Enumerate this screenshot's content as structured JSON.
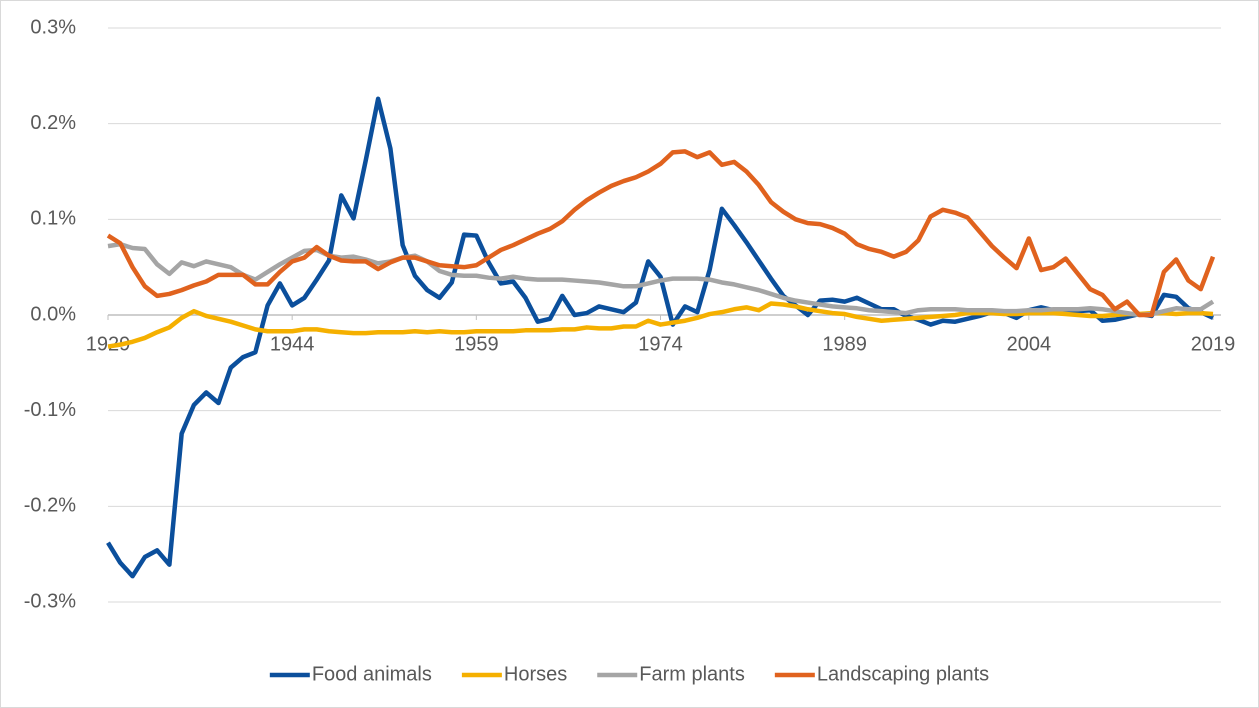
{
  "chart_data": {
    "type": "line",
    "x": [
      1929,
      1930,
      1931,
      1932,
      1933,
      1934,
      1935,
      1936,
      1937,
      1938,
      1939,
      1940,
      1941,
      1942,
      1943,
      1944,
      1945,
      1946,
      1947,
      1948,
      1949,
      1950,
      1951,
      1952,
      1953,
      1954,
      1955,
      1956,
      1957,
      1958,
      1959,
      1960,
      1961,
      1962,
      1963,
      1964,
      1965,
      1966,
      1967,
      1968,
      1969,
      1970,
      1971,
      1972,
      1973,
      1974,
      1975,
      1976,
      1977,
      1978,
      1979,
      1980,
      1981,
      1982,
      1983,
      1984,
      1985,
      1986,
      1987,
      1988,
      1989,
      1990,
      1991,
      1992,
      1993,
      1994,
      1995,
      1996,
      1997,
      1998,
      1999,
      2000,
      2001,
      2002,
      2003,
      2004,
      2005,
      2006,
      2007,
      2008,
      2009,
      2010,
      2011,
      2012,
      2013,
      2014,
      2015,
      2016,
      2017,
      2018,
      2019
    ],
    "series": [
      {
        "name": "Food animals",
        "color": "#0b4f9c",
        "values": [
          -0.238,
          -0.259,
          -0.273,
          -0.253,
          -0.246,
          -0.261,
          -0.124,
          -0.094,
          -0.081,
          -0.092,
          -0.055,
          -0.044,
          -0.039,
          0.01,
          0.033,
          0.01,
          0.018,
          0.037,
          0.057,
          0.125,
          0.101,
          0.162,
          0.226,
          0.174,
          0.073,
          0.041,
          0.026,
          0.018,
          0.034,
          0.084,
          0.083,
          0.055,
          0.033,
          0.035,
          0.018,
          -0.007,
          -0.004,
          0.02,
          0.0,
          0.002,
          0.009,
          0.006,
          0.003,
          0.013,
          0.056,
          0.04,
          -0.01,
          0.009,
          0.003,
          0.047,
          0.111,
          0.094,
          0.076,
          0.057,
          0.038,
          0.02,
          0.01,
          0.0,
          0.015,
          0.016,
          0.014,
          0.018,
          0.012,
          0.006,
          0.006,
          -0.001,
          -0.005,
          -0.01,
          -0.006,
          -0.007,
          -0.004,
          -0.001,
          0.003,
          0.002,
          -0.003,
          0.005,
          0.008,
          0.005,
          0.004,
          0.004,
          0.005,
          -0.006,
          -0.005,
          -0.002,
          0.001,
          -0.001,
          0.021,
          0.019,
          0.007,
          0.003,
          -0.003
        ]
      },
      {
        "name": "Horses",
        "color": "#f5b000",
        "values": [
          -0.033,
          -0.031,
          -0.028,
          -0.024,
          -0.018,
          -0.013,
          -0.003,
          0.004,
          -0.001,
          -0.004,
          -0.007,
          -0.011,
          -0.015,
          -0.017,
          -0.017,
          -0.017,
          -0.015,
          -0.015,
          -0.017,
          -0.018,
          -0.019,
          -0.019,
          -0.018,
          -0.018,
          -0.018,
          -0.017,
          -0.018,
          -0.017,
          -0.018,
          -0.018,
          -0.017,
          -0.017,
          -0.017,
          -0.017,
          -0.016,
          -0.016,
          -0.016,
          -0.015,
          -0.015,
          -0.013,
          -0.014,
          -0.014,
          -0.012,
          -0.012,
          -0.006,
          -0.01,
          -0.008,
          -0.006,
          -0.003,
          0.001,
          0.003,
          0.006,
          0.008,
          0.005,
          0.012,
          0.011,
          0.009,
          0.006,
          0.004,
          0.002,
          0.001,
          -0.002,
          -0.004,
          -0.006,
          -0.005,
          -0.004,
          -0.003,
          -0.002,
          -0.001,
          0.0,
          0.002,
          0.002,
          0.002,
          0.001,
          0.001,
          0.002,
          0.002,
          0.002,
          0.001,
          0.0,
          -0.001,
          -0.001,
          0.0,
          0.001,
          0.001,
          0.002,
          0.002,
          0.001,
          0.002,
          0.002,
          0.001
        ]
      },
      {
        "name": "Farm plants",
        "color": "#a5a5a5",
        "values": [
          0.072,
          0.074,
          0.07,
          0.069,
          0.053,
          0.043,
          0.055,
          0.051,
          0.056,
          0.053,
          0.05,
          0.042,
          0.037,
          0.045,
          0.053,
          0.06,
          0.067,
          0.068,
          0.062,
          0.06,
          0.061,
          0.058,
          0.054,
          0.056,
          0.06,
          0.062,
          0.056,
          0.046,
          0.042,
          0.041,
          0.041,
          0.039,
          0.038,
          0.04,
          0.038,
          0.037,
          0.037,
          0.037,
          0.036,
          0.035,
          0.034,
          0.032,
          0.03,
          0.03,
          0.033,
          0.036,
          0.038,
          0.038,
          0.038,
          0.037,
          0.034,
          0.032,
          0.029,
          0.026,
          0.022,
          0.018,
          0.015,
          0.013,
          0.011,
          0.009,
          0.008,
          0.007,
          0.005,
          0.004,
          0.003,
          0.002,
          0.005,
          0.006,
          0.006,
          0.006,
          0.005,
          0.005,
          0.005,
          0.004,
          0.004,
          0.005,
          0.005,
          0.006,
          0.006,
          0.006,
          0.007,
          0.006,
          0.004,
          0.002,
          0.0,
          0.001,
          0.004,
          0.007,
          0.006,
          0.006,
          0.014
        ]
      },
      {
        "name": "Landscaping plants",
        "color": "#e0621e",
        "values": [
          0.083,
          0.075,
          0.05,
          0.03,
          0.02,
          0.022,
          0.026,
          0.031,
          0.035,
          0.042,
          0.042,
          0.042,
          0.032,
          0.032,
          0.045,
          0.056,
          0.06,
          0.071,
          0.062,
          0.057,
          0.056,
          0.056,
          0.048,
          0.055,
          0.06,
          0.06,
          0.056,
          0.052,
          0.051,
          0.05,
          0.052,
          0.06,
          0.068,
          0.073,
          0.079,
          0.085,
          0.09,
          0.098,
          0.11,
          0.12,
          0.128,
          0.135,
          0.14,
          0.144,
          0.15,
          0.158,
          0.17,
          0.171,
          0.165,
          0.17,
          0.157,
          0.16,
          0.15,
          0.136,
          0.118,
          0.108,
          0.1,
          0.096,
          0.095,
          0.091,
          0.085,
          0.074,
          0.069,
          0.066,
          0.061,
          0.066,
          0.078,
          0.103,
          0.11,
          0.107,
          0.102,
          0.087,
          0.072,
          0.06,
          0.049,
          0.08,
          0.047,
          0.05,
          0.059,
          0.043,
          0.027,
          0.021,
          0.006,
          0.014,
          0.0,
          0.0,
          0.045,
          0.058,
          0.036,
          0.027,
          0.061
        ]
      }
    ],
    "xlim": [
      1929,
      2019
    ],
    "xticks": [
      1929,
      1944,
      1959,
      1974,
      1989,
      2004,
      2019
    ],
    "ylim": [
      -0.3,
      0.3
    ],
    "yticks": [
      {
        "value": -0.3,
        "label": "-0.3%"
      },
      {
        "value": -0.2,
        "label": "-0.2%"
      },
      {
        "value": -0.1,
        "label": "-0.1%"
      },
      {
        "value": 0,
        "label": "0.0%"
      },
      {
        "value": 0.1,
        "label": "0.1%"
      },
      {
        "value": 0.2,
        "label": "0.2%"
      },
      {
        "value": 0.3,
        "label": "0.3%"
      }
    ],
    "grid": true,
    "legend": "bottom"
  }
}
